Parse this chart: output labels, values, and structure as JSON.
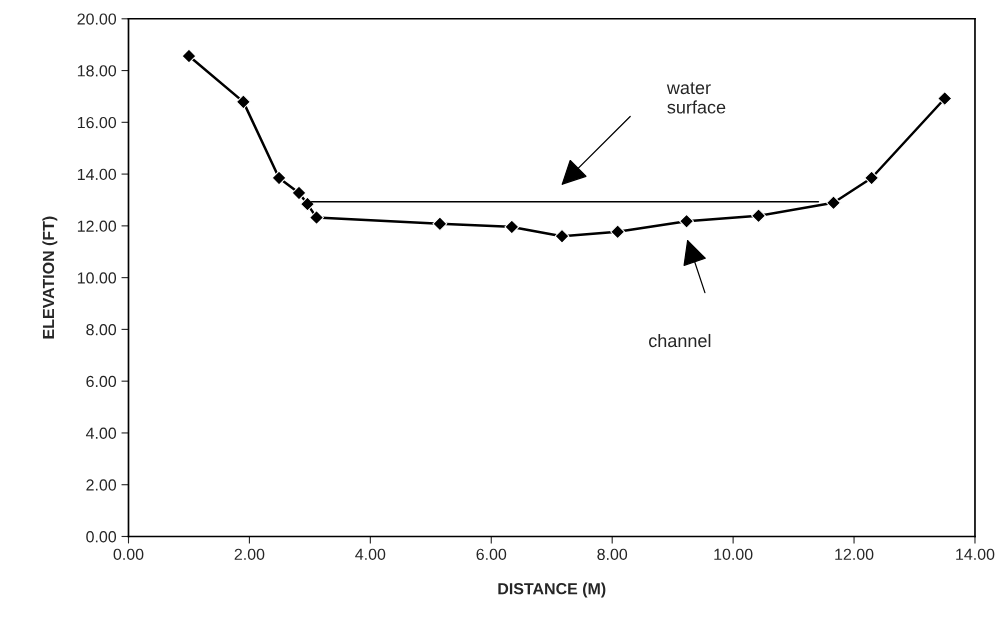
{
  "chart_data": {
    "type": "line",
    "xlabel": "DISTANCE (M)",
    "ylabel": "ELEVATION (FT)",
    "xlim": [
      0,
      14
    ],
    "ylim": [
      0,
      20
    ],
    "xticks": [
      {
        "value": 0,
        "label": "0.00"
      },
      {
        "value": 2,
        "label": "2.00"
      },
      {
        "value": 4,
        "label": "4.00"
      },
      {
        "value": 6,
        "label": "6.00"
      },
      {
        "value": 8,
        "label": "8.00"
      },
      {
        "value": 10,
        "label": "10.00"
      },
      {
        "value": 12,
        "label": "12.00"
      },
      {
        "value": 14,
        "label": "14.00"
      }
    ],
    "yticks": [
      {
        "value": 0,
        "label": "0.00"
      },
      {
        "value": 2,
        "label": "2.00"
      },
      {
        "value": 4,
        "label": "4.00"
      },
      {
        "value": 6,
        "label": "6.00"
      },
      {
        "value": 8,
        "label": "8.00"
      },
      {
        "value": 10,
        "label": "10.00"
      },
      {
        "value": 12,
        "label": "12.00"
      },
      {
        "value": 14,
        "label": "14.00"
      },
      {
        "value": 16,
        "label": "16.00"
      },
      {
        "value": 18,
        "label": "18.00"
      },
      {
        "value": 20,
        "label": "20.00"
      }
    ],
    "grid": false,
    "legend": false,
    "series": [
      {
        "color": "#000000",
        "marker": "diamond",
        "x": [
          1.0,
          1.9,
          2.49,
          2.82,
          2.96,
          3.11,
          5.15,
          6.34,
          7.17,
          8.09,
          9.23,
          10.42,
          11.66,
          12.29,
          13.5
        ],
        "values": [
          18.56,
          16.79,
          13.85,
          13.27,
          12.84,
          12.32,
          12.08,
          11.96,
          11.6,
          11.77,
          12.18,
          12.39,
          12.89,
          13.85,
          16.92
        ]
      },
      {
        "color": "#000000",
        "marker": "none",
        "x": [
          3.03,
          11.41
        ],
        "values": [
          12.93,
          12.93
        ]
      }
    ],
    "annotations": [
      "water surface",
      "channel"
    ]
  }
}
